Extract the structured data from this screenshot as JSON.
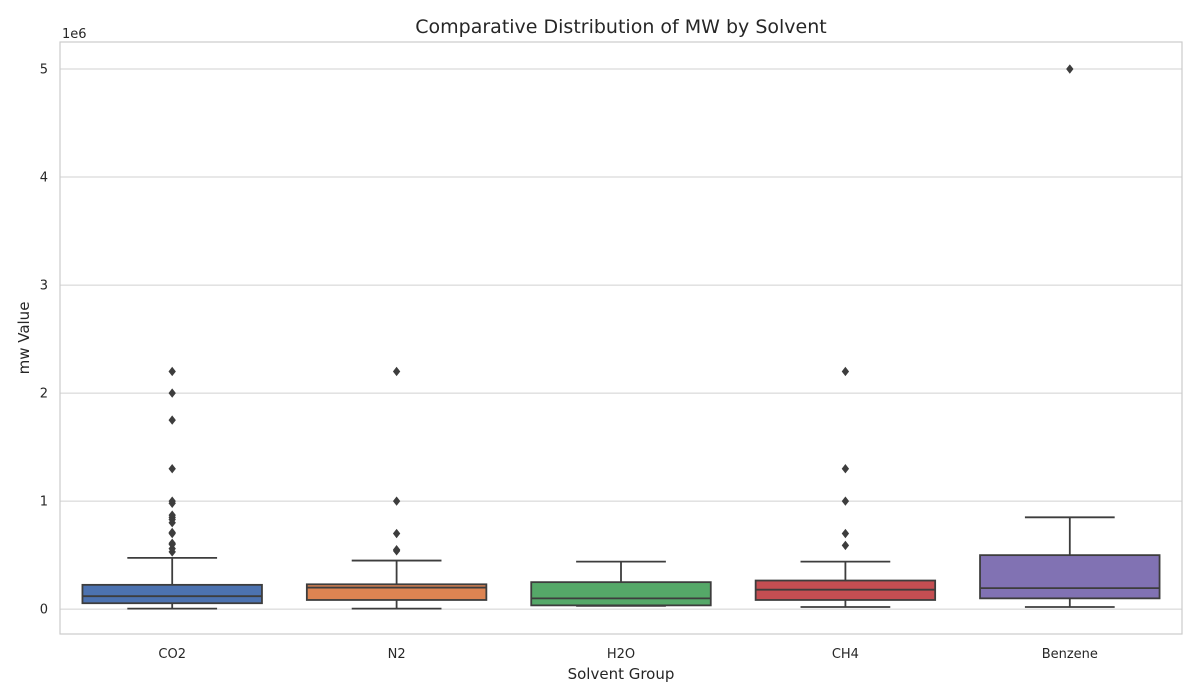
{
  "chart_data": {
    "type": "boxplot",
    "title": "Comparative Distribution of MW by Solvent",
    "xlabel": "Solvent Group",
    "ylabel": "mw Value",
    "y_offset_label": "1e6",
    "y_scale_factor": 1000000,
    "ylim": [
      -230000,
      5250000
    ],
    "yticks": [
      0,
      1,
      2,
      3,
      4,
      5
    ],
    "grid": true,
    "categories": [
      "CO2",
      "N2",
      "H2O",
      "CH4",
      "Benzene"
    ],
    "colors": [
      "#4C72B0",
      "#DD8452",
      "#55A868",
      "#C44E52",
      "#8172B3"
    ],
    "boxes": [
      {
        "name": "CO2",
        "whisker_low": 5000,
        "q1": 55000,
        "median": 120000,
        "q3": 225000,
        "whisker_high": 475000,
        "outliers": [
          530000,
          560000,
          600000,
          610000,
          700000,
          710000,
          800000,
          830000,
          850000,
          870000,
          980000,
          1000000,
          1300000,
          1750000,
          2000000,
          2200000
        ]
      },
      {
        "name": "N2",
        "whisker_low": 5000,
        "q1": 85000,
        "median": 200000,
        "q3": 230000,
        "whisker_high": 450000,
        "outliers": [
          540000,
          550000,
          700000,
          1000000,
          2200000
        ]
      },
      {
        "name": "H2O",
        "whisker_low": 30000,
        "q1": 35000,
        "median": 100000,
        "q3": 250000,
        "whisker_high": 440000,
        "outliers": []
      },
      {
        "name": "CH4",
        "whisker_low": 20000,
        "q1": 85000,
        "median": 180000,
        "q3": 265000,
        "whisker_high": 440000,
        "outliers": [
          590000,
          700000,
          1000000,
          1300000,
          2200000
        ]
      },
      {
        "name": "Benzene",
        "whisker_low": 20000,
        "q1": 100000,
        "median": 195000,
        "q3": 500000,
        "whisker_high": 850000,
        "outliers": [
          5000000
        ]
      }
    ]
  }
}
